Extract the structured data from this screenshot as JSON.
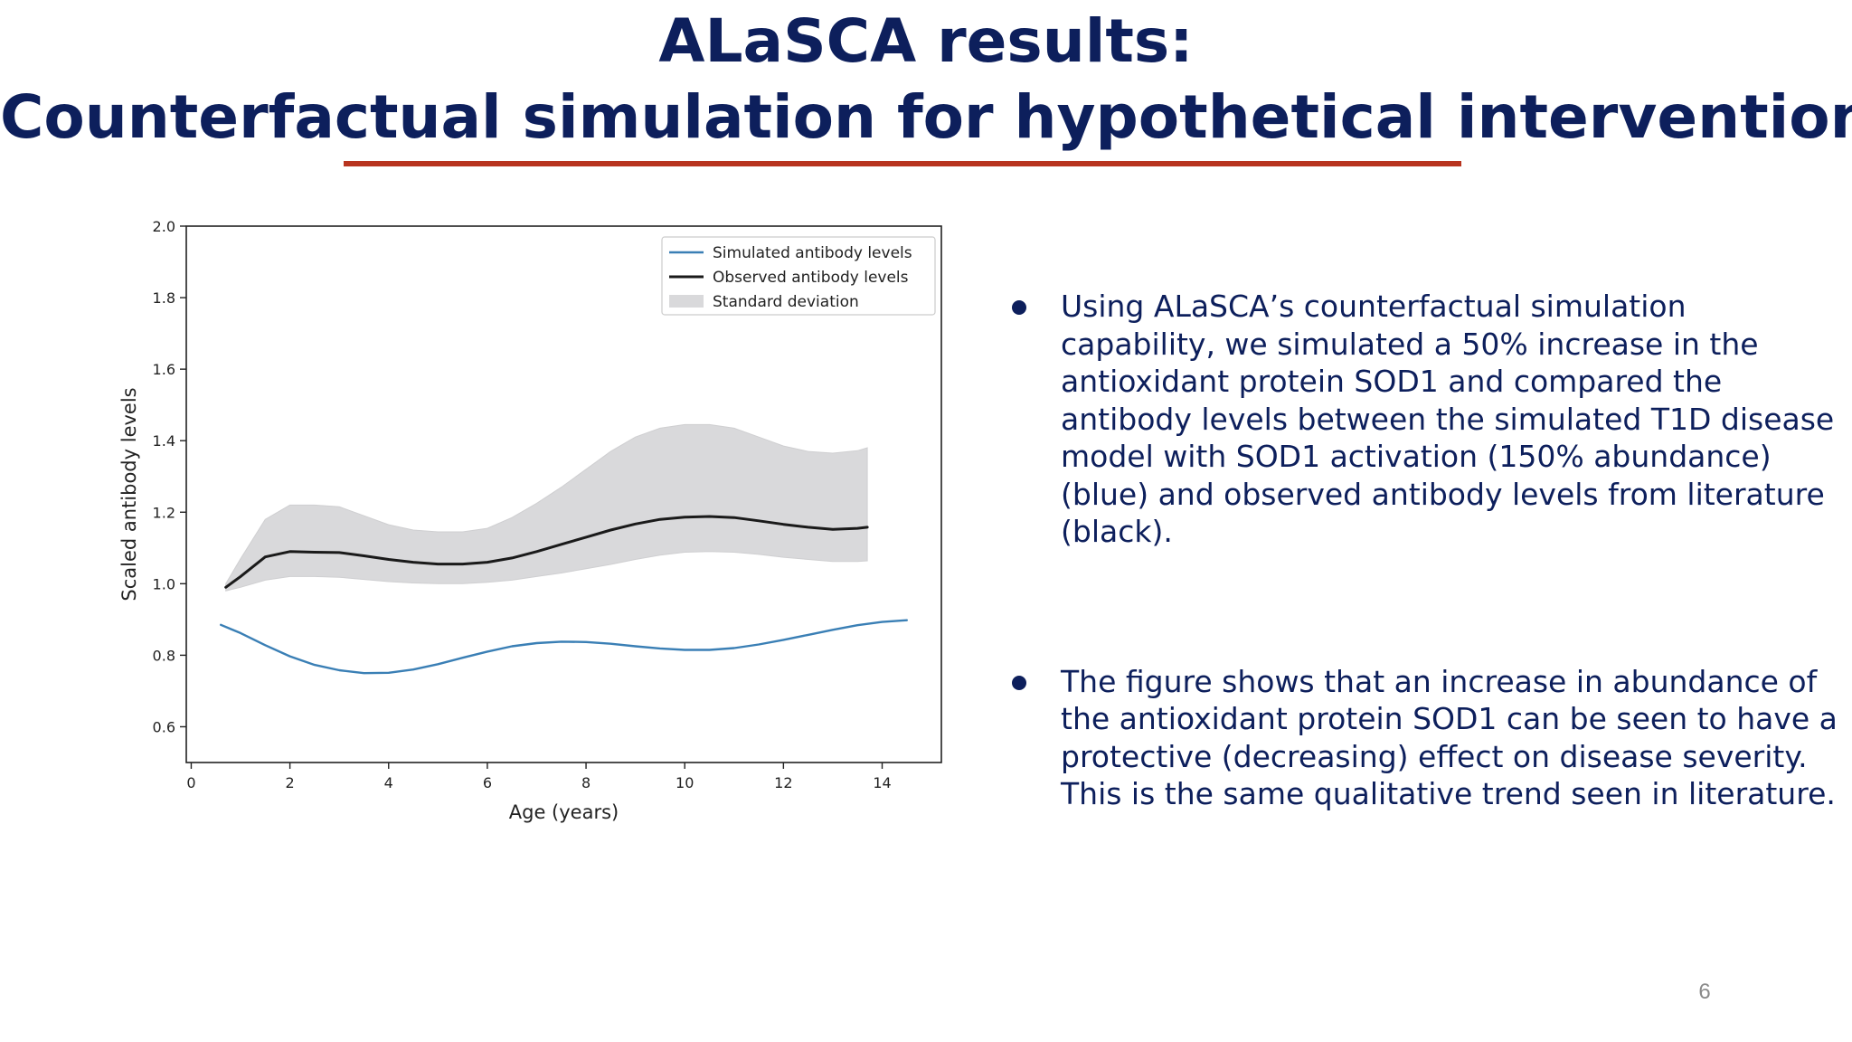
{
  "slide": {
    "title_line1": "ALaSCA results:",
    "title_line2": "Counterfactual simulation for hypothetical interventions",
    "page_number": "6",
    "colors": {
      "title": "#0d1f5c",
      "rule": "#b8341f",
      "text": "#0d1f5c"
    }
  },
  "bullets": [
    {
      "text": "Using ALaSCA’s counterfactual simulation capability, we simulated a 50% increase in the antioxidant protein SOD1 and compared the antibody levels between the simulated T1D disease model with SOD1 activation (150% abundance) (blue) and observed antibody levels from literature (black)."
    },
    {
      "text": "The figure shows that an increase in abundance of the antioxidant protein SOD1 can be seen to have a protective (decreasing) effect on disease severity. This is the same qualitative trend seen in literature."
    }
  ],
  "chart_data": {
    "type": "line",
    "title": "",
    "xlabel": "Age (years)",
    "ylabel": "Scaled antibody levels",
    "xlim": [
      -0.1,
      15.2
    ],
    "ylim": [
      0.5,
      2.0
    ],
    "xticks": [
      "0",
      "2",
      "4",
      "6",
      "8",
      "10",
      "12",
      "14"
    ],
    "yticks": [
      "0.6",
      "0.8",
      "1.0",
      "1.2",
      "1.4",
      "1.6",
      "1.8",
      "2.0"
    ],
    "grid": false,
    "legend_position": "top-right",
    "legend": [
      "Simulated antibody levels",
      "Observed antibody levels",
      "Standard deviation"
    ],
    "series": [
      {
        "name": "Simulated antibody levels",
        "color": "#3a7fb5",
        "x": [
          0.6,
          1.0,
          1.5,
          2.0,
          2.5,
          3.0,
          3.5,
          4.0,
          4.5,
          5.0,
          5.5,
          6.0,
          6.5,
          7.0,
          7.5,
          8.0,
          8.5,
          9.0,
          9.5,
          10.0,
          10.5,
          11.0,
          11.5,
          12.0,
          12.5,
          13.0,
          13.5,
          14.0,
          14.5
        ],
        "y": [
          0.885,
          0.862,
          0.828,
          0.797,
          0.773,
          0.758,
          0.75,
          0.751,
          0.76,
          0.775,
          0.793,
          0.81,
          0.825,
          0.834,
          0.838,
          0.837,
          0.832,
          0.825,
          0.819,
          0.815,
          0.815,
          0.82,
          0.83,
          0.843,
          0.857,
          0.871,
          0.884,
          0.893,
          0.898
        ]
      },
      {
        "name": "Observed antibody levels",
        "color": "#1a1a1a",
        "x": [
          0.7,
          1.0,
          1.5,
          2.0,
          2.5,
          3.0,
          3.5,
          4.0,
          4.5,
          5.0,
          5.5,
          6.0,
          6.5,
          7.0,
          7.5,
          8.0,
          8.5,
          9.0,
          9.5,
          10.0,
          10.5,
          11.0,
          11.5,
          12.0,
          12.5,
          13.0,
          13.5,
          13.7
        ],
        "y": [
          0.99,
          1.02,
          1.075,
          1.09,
          1.088,
          1.087,
          1.078,
          1.068,
          1.06,
          1.055,
          1.055,
          1.06,
          1.072,
          1.09,
          1.11,
          1.13,
          1.15,
          1.167,
          1.18,
          1.186,
          1.188,
          1.185,
          1.176,
          1.166,
          1.158,
          1.152,
          1.155,
          1.158
        ]
      }
    ],
    "band": {
      "name": "Standard deviation",
      "color": "#d9d9db",
      "x": [
        0.7,
        1.0,
        1.5,
        2.0,
        2.5,
        3.0,
        3.5,
        4.0,
        4.5,
        5.0,
        5.5,
        6.0,
        6.5,
        7.0,
        7.5,
        8.0,
        8.5,
        9.0,
        9.5,
        10.0,
        10.5,
        11.0,
        11.5,
        12.0,
        12.5,
        13.0,
        13.5,
        13.7
      ],
      "upper": [
        1.0,
        1.07,
        1.18,
        1.22,
        1.22,
        1.215,
        1.19,
        1.165,
        1.15,
        1.145,
        1.145,
        1.155,
        1.185,
        1.225,
        1.27,
        1.32,
        1.37,
        1.41,
        1.435,
        1.445,
        1.445,
        1.435,
        1.41,
        1.385,
        1.37,
        1.365,
        1.372,
        1.38
      ],
      "lower": [
        0.98,
        0.99,
        1.01,
        1.02,
        1.02,
        1.018,
        1.012,
        1.006,
        1.002,
        1.0,
        1.0,
        1.004,
        1.01,
        1.02,
        1.03,
        1.042,
        1.054,
        1.068,
        1.08,
        1.088,
        1.09,
        1.088,
        1.082,
        1.074,
        1.068,
        1.062,
        1.062,
        1.064
      ]
    }
  }
}
